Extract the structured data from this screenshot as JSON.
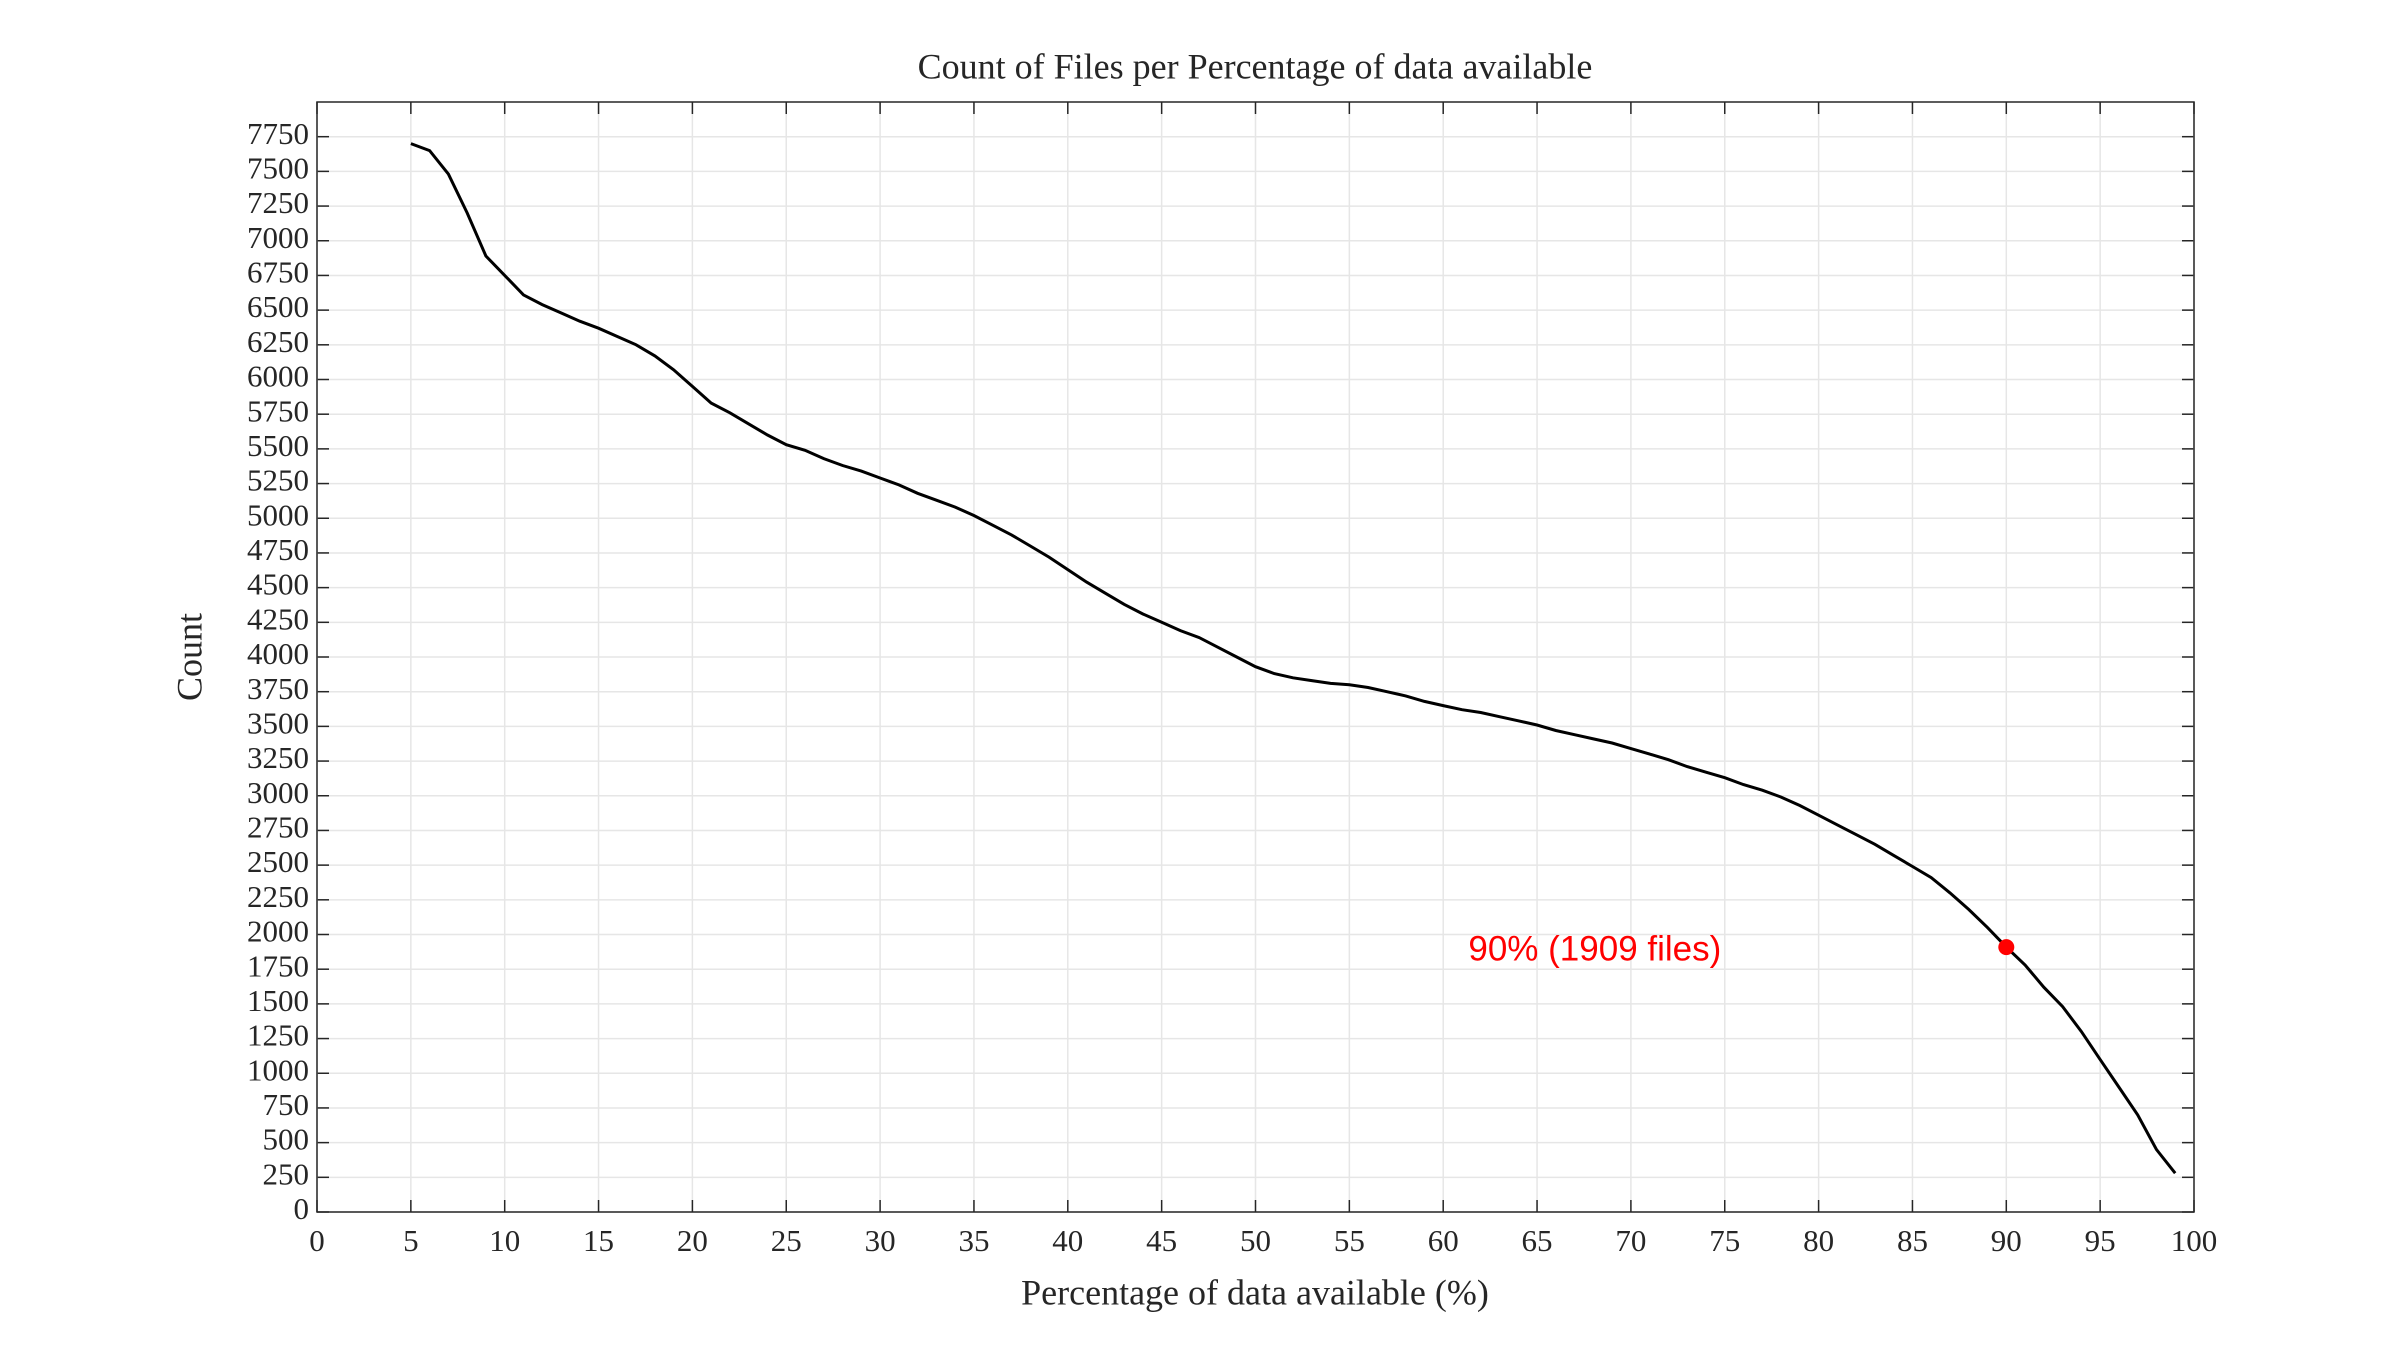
{
  "chart_data": {
    "type": "line",
    "title": "Count of Files per Percentage of data available",
    "x_label": "Percentage of data available (%)",
    "y_label": "Count",
    "x": [
      5,
      6,
      7,
      8,
      9,
      10,
      11,
      12,
      13,
      14,
      15,
      16,
      17,
      18,
      19,
      20,
      21,
      22,
      23,
      24,
      25,
      26,
      27,
      28,
      29,
      30,
      31,
      32,
      33,
      34,
      35,
      36,
      37,
      38,
      39,
      40,
      41,
      42,
      43,
      44,
      45,
      46,
      47,
      48,
      49,
      50,
      51,
      52,
      53,
      54,
      55,
      56,
      57,
      58,
      59,
      60,
      61,
      62,
      63,
      64,
      65,
      66,
      67,
      68,
      69,
      70,
      71,
      72,
      73,
      74,
      75,
      76,
      77,
      78,
      79,
      80,
      81,
      82,
      83,
      84,
      85,
      86,
      87,
      88,
      89,
      90,
      91,
      92,
      93,
      94,
      95,
      96,
      97,
      98,
      99
    ],
    "series": [
      {
        "name": "Count",
        "color": "#000000",
        "values": [
          7700,
          7650,
          7480,
          7200,
          6890,
          6750,
          6610,
          6540,
          6480,
          6420,
          6370,
          6310,
          6250,
          6170,
          6070,
          5950,
          5830,
          5760,
          5680,
          5600,
          5530,
          5490,
          5430,
          5380,
          5340,
          5290,
          5240,
          5180,
          5130,
          5080,
          5020,
          4950,
          4880,
          4800,
          4720,
          4630,
          4540,
          4460,
          4380,
          4310,
          4250,
          4190,
          4140,
          4070,
          4000,
          3930,
          3880,
          3850,
          3830,
          3810,
          3800,
          3780,
          3750,
          3720,
          3680,
          3650,
          3620,
          3600,
          3570,
          3540,
          3510,
          3470,
          3440,
          3410,
          3380,
          3340,
          3300,
          3260,
          3210,
          3170,
          3130,
          3080,
          3040,
          2990,
          2930,
          2860,
          2790,
          2720,
          2650,
          2570,
          2490,
          2410,
          2300,
          2180,
          2050,
          1909,
          1780,
          1620,
          1480,
          1300,
          1100,
          900,
          700,
          450,
          280
        ]
      }
    ],
    "highlight": {
      "x": 90,
      "y": 1909,
      "label": "90% (1909 files)",
      "color": "#ff0000"
    },
    "xlim": [
      0,
      100
    ],
    "xticks": [
      0,
      5,
      10,
      15,
      20,
      25,
      30,
      35,
      40,
      45,
      50,
      55,
      60,
      65,
      70,
      75,
      80,
      85,
      90,
      95,
      100
    ],
    "ylim": [
      0,
      8000
    ],
    "yticks": [
      0,
      250,
      500,
      750,
      1000,
      1250,
      1500,
      1750,
      2000,
      2250,
      2500,
      2750,
      3000,
      3250,
      3500,
      3750,
      4000,
      4250,
      4500,
      4750,
      5000,
      5250,
      5500,
      5750,
      6000,
      6250,
      6500,
      6750,
      7000,
      7250,
      7500,
      7750
    ],
    "grid": true
  }
}
